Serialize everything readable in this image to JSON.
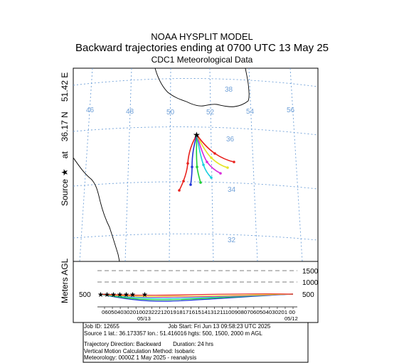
{
  "header": {
    "line1": "NOAA HYSPLIT MODEL",
    "line2": "Backward trajectories ending at 0700 UTC 13 May 25",
    "line3": "CDC1 Meteorological Data"
  },
  "side_label": {
    "source": "Source",
    "star": "★",
    "at": "at",
    "lat": "36.17 N",
    "lon": "51.42 E"
  },
  "map": {
    "lon_labels": [
      "46",
      "48",
      "50",
      "52",
      "54",
      "56"
    ],
    "lat_labels": [
      "38",
      "36",
      "34",
      "32"
    ],
    "source_lat": 36.17,
    "source_lon": 51.42,
    "colors": {
      "red": "#e8211d",
      "blue": "#1f36d8",
      "green": "#1fcf35",
      "cyan": "#17cfe0",
      "magenta": "#d92ad9",
      "yellow": "#e5e52a",
      "grid": "#6fa0d8",
      "coast": "#000000"
    }
  },
  "vertical": {
    "axis_label": "Meters AGL",
    "levels": [
      "1500",
      "1000",
      "500"
    ],
    "left_level": "500",
    "time_ticks": "060504030201002322212019181716151413121110090807060504030201 00",
    "date_left": "05/13",
    "date_right": "05/12"
  },
  "info": {
    "job_id": "Job ID: 12655",
    "job_start": "Job Start: Fri Jun 13 09:58:23 UTC 2025",
    "source_line": "Source 1 lat.: 36.173357    lon.: 51.416016    hgts: 500, 1500, 2000 m AGL",
    "direction": "Trajectory Direction: Backward",
    "duration": "Duration: 24 hrs",
    "vertical_method": "Vertical Motion Calculation Method:     Isobaric",
    "meteorology": "Meteorology: 0000Z 1 May 2025 - reanalysis"
  }
}
